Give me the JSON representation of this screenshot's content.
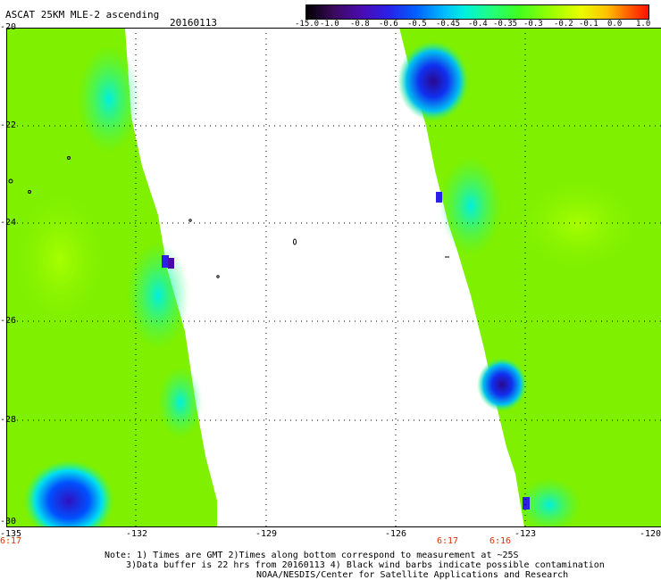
{
  "header": {
    "title": "ASCAT 25KM MLE-2 ascending",
    "date": "20160113"
  },
  "colorbar": {
    "ticks": [
      "-15.0",
      "-1.0",
      "-0.8",
      "-0.6",
      "-0.5",
      "-0.45",
      "-0.4",
      "-0.35",
      "-0.3",
      "-0.2",
      "-0.1",
      "0.0",
      "1.0"
    ]
  },
  "axes": {
    "y_ticks": [
      "-20",
      "-22",
      "-24",
      "-26",
      "-28",
      "-30"
    ],
    "x_ticks": [
      "-135",
      "-132",
      "-129",
      "-126",
      "-123",
      "-120"
    ]
  },
  "times": {
    "left": "6:17",
    "right_a": "6:17",
    "right_b": "6:16"
  },
  "notes": {
    "line1": "Note: 1) Times are GMT 2)Times along bottom correspond to measurement at ~25S",
    "line2": "3)Data buffer is 22 hrs from 20160113 4) Black wind barbs indicate possible contamination",
    "line3": "NOAA/NESDIS/Center for Satellite Applications and Research"
  },
  "colors": {
    "green": "#7ef000",
    "cyan": "#00f0d0",
    "blue": "#0040ff",
    "purple": "#4a0aa8"
  }
}
